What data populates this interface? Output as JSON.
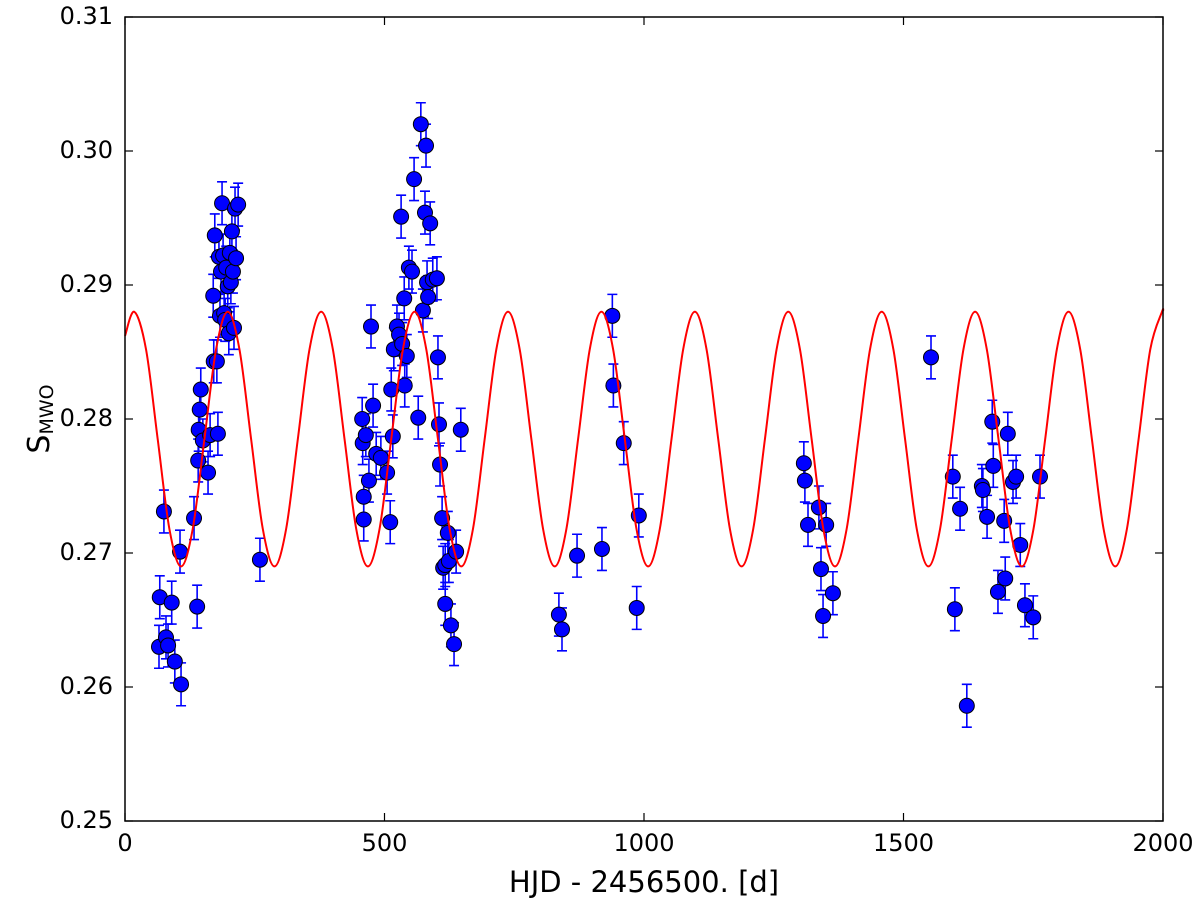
{
  "chart_data": {
    "type": "scatter",
    "xlabel": "HJD - 2456500. [d]",
    "ylabel": "S",
    "ylabel_sub": "MWO",
    "xlim": [
      0,
      2000
    ],
    "ylim": [
      0.25,
      0.31
    ],
    "xticks": [
      0,
      500,
      1000,
      1500,
      2000
    ],
    "yticks": [
      0.25,
      0.26,
      0.27,
      0.28,
      0.29,
      {
        "value": 0.3,
        "label": "0.30"
      },
      0.31
    ],
    "series": [
      {
        "type": "scatter",
        "color": "#0000ff",
        "y_error": 0.0016,
        "x": [
          65.5,
          67,
          75,
          79,
          83,
          90,
          96,
          106,
          108,
          133,
          139,
          141,
          142,
          144,
          146,
          150,
          160,
          164,
          170,
          171,
          173,
          177,
          179,
          181,
          183,
          185,
          187,
          189,
          191,
          193,
          195,
          198,
          200,
          202,
          204,
          206,
          208,
          210,
          212,
          214,
          218,
          260,
          457,
          458,
          460,
          460,
          464,
          470,
          474,
          478,
          484,
          493,
          505,
          511,
          513,
          516,
          518,
          524,
          528,
          532,
          534,
          538,
          539,
          543,
          547,
          553,
          557,
          565,
          570,
          574,
          578,
          580,
          582,
          584,
          588,
          593,
          601,
          603,
          605,
          607,
          611,
          613,
          617,
          617,
          622,
          624,
          628,
          634,
          638,
          647,
          836,
          842,
          871,
          919,
          939,
          941,
          961,
          986,
          990,
          1308,
          1310,
          1316,
          1337,
          1341,
          1345,
          1351,
          1364,
          1553,
          1595,
          1599,
          1609,
          1622,
          1651,
          1653,
          1661,
          1671,
          1673,
          1682,
          1694,
          1696,
          1701,
          1711,
          1717,
          1725,
          1734,
          1750,
          1763
        ],
        "y": [
          0.263,
          0.2667,
          0.2731,
          0.2637,
          0.2631,
          0.2663,
          0.2619,
          0.2701,
          0.2602,
          0.2726,
          0.266,
          0.2769,
          0.2792,
          0.2807,
          0.2822,
          0.2784,
          0.276,
          0.2788,
          0.2892,
          0.2843,
          0.2937,
          0.2843,
          0.2789,
          0.2921,
          0.2877,
          0.291,
          0.2961,
          0.2922,
          0.2879,
          0.2874,
          0.2913,
          0.2899,
          0.2864,
          0.2924,
          0.2902,
          0.294,
          0.291,
          0.2868,
          0.2957,
          0.292,
          0.296,
          0.2695,
          0.28,
          0.2782,
          0.2742,
          0.2725,
          0.2788,
          0.2754,
          0.2869,
          0.281,
          0.2774,
          0.2771,
          0.276,
          0.2723,
          0.2822,
          0.2787,
          0.2852,
          0.2869,
          0.2863,
          0.2951,
          0.2856,
          0.289,
          0.2825,
          0.2847,
          0.2913,
          0.291,
          0.2979,
          0.2801,
          0.302,
          0.2881,
          0.2954,
          0.3004,
          0.2902,
          0.2891,
          0.2946,
          0.2904,
          0.2905,
          0.2846,
          0.2796,
          0.2766,
          0.2726,
          0.2689,
          0.2691,
          0.2662,
          0.2715,
          0.2694,
          0.2646,
          0.2632,
          0.2701,
          0.2792,
          0.2654,
          0.2643,
          0.2698,
          0.2703,
          0.2877,
          0.2825,
          0.2782,
          0.2659,
          0.2728,
          0.2767,
          0.2754,
          0.2721,
          0.2734,
          0.2688,
          0.2653,
          0.2721,
          0.267,
          0.2846,
          0.2757,
          0.2658,
          0.2733,
          0.2586,
          0.275,
          0.2747,
          0.2727,
          0.2798,
          0.2765,
          0.2671,
          0.2724,
          0.2681,
          0.2789,
          0.2753,
          0.2757,
          0.2706,
          0.2661,
          0.2652,
          0.2757
        ]
      },
      {
        "type": "line",
        "color": "#ff0000",
        "x": [
          0,
          18,
          40.5,
          63,
          85.5,
          108,
          130.5,
          153,
          175.5,
          198,
          220.5,
          243,
          265.5,
          288,
          310.5,
          333,
          355.5,
          378,
          400.5,
          423,
          445.5,
          468,
          490.5,
          513,
          535.5,
          558,
          580.5,
          603,
          625.5,
          648,
          670.5,
          693,
          715.5,
          738,
          760.5,
          783,
          805.5,
          828,
          850.5,
          873,
          895.5,
          918,
          940.5,
          963,
          985.5,
          1008,
          1030.5,
          1053,
          1075.5,
          1098,
          1120.5,
          1143,
          1165.5,
          1188,
          1210.5,
          1233,
          1255.5,
          1278,
          1300.5,
          1323,
          1345.5,
          1368,
          1390.5,
          1413,
          1435.5,
          1458,
          1480.5,
          1503,
          1525.5,
          1548,
          1570.5,
          1593,
          1615.5,
          1638,
          1660.5,
          1683,
          1705.5,
          1728,
          1750.5,
          1773,
          1795.5,
          1818,
          1840.5,
          1863,
          1885.5,
          1908,
          1930.5,
          1953,
          1975.5,
          1998,
          2000
        ],
        "y": [
          0.2862,
          0.288,
          0.2852,
          0.2785,
          0.2718,
          0.269,
          0.2718,
          0.2785,
          0.2852,
          0.288,
          0.2852,
          0.2785,
          0.2718,
          0.269,
          0.2718,
          0.2785,
          0.2852,
          0.288,
          0.2852,
          0.2785,
          0.2718,
          0.269,
          0.2718,
          0.2785,
          0.2852,
          0.288,
          0.2852,
          0.2785,
          0.2718,
          0.269,
          0.2718,
          0.2785,
          0.2852,
          0.288,
          0.2852,
          0.2785,
          0.2718,
          0.269,
          0.2718,
          0.2785,
          0.2852,
          0.288,
          0.2852,
          0.2785,
          0.2718,
          0.269,
          0.2718,
          0.2785,
          0.2852,
          0.288,
          0.2852,
          0.2785,
          0.2718,
          0.269,
          0.2718,
          0.2785,
          0.2852,
          0.288,
          0.2852,
          0.2785,
          0.2718,
          0.269,
          0.2718,
          0.2785,
          0.2852,
          0.288,
          0.2852,
          0.2785,
          0.2718,
          0.269,
          0.2718,
          0.2785,
          0.2852,
          0.288,
          0.2852,
          0.2785,
          0.2718,
          0.269,
          0.2718,
          0.2785,
          0.2852,
          0.288,
          0.2852,
          0.2785,
          0.2718,
          0.269,
          0.2718,
          0.2785,
          0.2852,
          0.288,
          0.288
        ]
      }
    ]
  }
}
